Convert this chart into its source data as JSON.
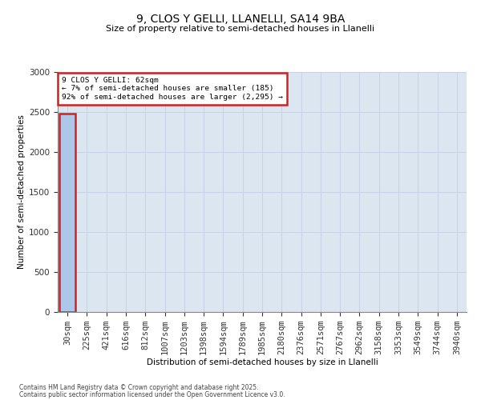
{
  "title_line1": "9, CLOS Y GELLI, LLANELLI, SA14 9BA",
  "title_line2": "Size of property relative to semi-detached houses in Llanelli",
  "xlabel": "Distribution of semi-detached houses by size in Llanelli",
  "ylabel": "Number of semi-detached properties",
  "property_size": 62,
  "property_label": "9 CLOS Y GELLI: 62sqm",
  "pct_smaller": 7,
  "count_smaller": 185,
  "pct_larger": 92,
  "count_larger": "2,295",
  "bin_labels": [
    "30sqm",
    "225sqm",
    "421sqm",
    "616sqm",
    "812sqm",
    "1007sqm",
    "1203sqm",
    "1398sqm",
    "1594sqm",
    "1789sqm",
    "1985sqm",
    "2180sqm",
    "2376sqm",
    "2571sqm",
    "2767sqm",
    "2962sqm",
    "3158sqm",
    "3353sqm",
    "3549sqm",
    "3744sqm",
    "3940sqm"
  ],
  "bar_heights": [
    2480,
    5,
    1,
    0,
    0,
    0,
    0,
    0,
    0,
    0,
    0,
    0,
    0,
    0,
    0,
    0,
    0,
    0,
    0,
    0,
    0
  ],
  "bar_color": "#aec6e8",
  "highlight_bar_index": 0,
  "highlight_color": "#cc2222",
  "grid_color": "#c8d4e4",
  "background_color": "#dce6f0",
  "ylim": [
    0,
    3000
  ],
  "yticks": [
    0,
    500,
    1000,
    1500,
    2000,
    2500,
    3000
  ],
  "annotation_box_color": "#cc2222",
  "footer_line1": "Contains HM Land Registry data © Crown copyright and database right 2025.",
  "footer_line2": "Contains public sector information licensed under the Open Government Licence v3.0."
}
